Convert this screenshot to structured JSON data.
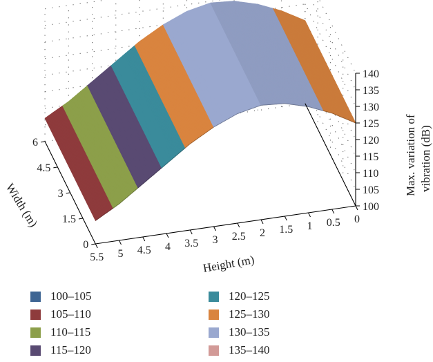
{
  "chart_data": {
    "type": "surface",
    "title": "",
    "xlabel": "Height (m)",
    "ylabel": "Width (m)",
    "zlabel_lines": [
      "Max. variation of",
      "vibration (dB)"
    ],
    "height_ticks": [
      "5.5",
      "5",
      "4.5",
      "4",
      "3.5",
      "3",
      "2.5",
      "2",
      "1.5",
      "1",
      "0.5",
      "0"
    ],
    "width_ticks": [
      "0",
      "1.5",
      "3",
      "4.5",
      "6"
    ],
    "z_ticks": [
      "100",
      "105",
      "110",
      "115",
      "120",
      "125",
      "130",
      "135",
      "140"
    ],
    "xlim": [
      0,
      5.5
    ],
    "ylim": [
      0,
      6
    ],
    "zlim": [
      100,
      140
    ],
    "height_values": [
      0,
      0.5,
      1,
      1.5,
      2,
      2.5,
      3,
      3.5,
      4,
      4.5,
      5,
      5.5
    ],
    "max_variation_db": [
      125,
      129,
      132,
      134,
      134.5,
      133,
      130,
      126,
      121,
      116,
      111,
      107
    ],
    "grid": true,
    "legend_position": "bottom",
    "legend": [
      {
        "label": "100–105",
        "color": "#3e6593"
      },
      {
        "label": "105–110",
        "color": "#8e3b3c"
      },
      {
        "label": "110–115",
        "color": "#8c9f4a"
      },
      {
        "label": "115–120",
        "color": "#594a72"
      },
      {
        "label": "120–125",
        "color": "#3a8b9b"
      },
      {
        "label": "125–130",
        "color": "#d9843f"
      },
      {
        "label": "130–135",
        "color": "#9aa8cf"
      },
      {
        "label": "135–140",
        "color": "#d29a97"
      }
    ]
  }
}
